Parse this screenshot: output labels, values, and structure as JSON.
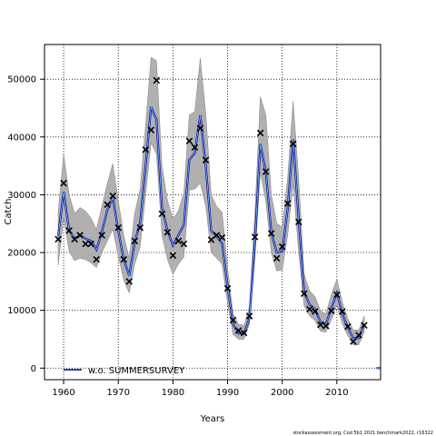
{
  "chart_data": {
    "type": "line",
    "title": "",
    "xlabel": "Years",
    "ylabel": "Catch",
    "xlim": [
      1956.5,
      2018
    ],
    "ylim": [
      -2000,
      56000
    ],
    "xticks": [
      1960,
      1970,
      1980,
      1990,
      2000,
      2010
    ],
    "yticks": [
      0,
      10000,
      20000,
      30000,
      40000,
      50000
    ],
    "grid": true,
    "legend_position": "bottom-left",
    "years": [
      1959,
      1960,
      1961,
      1962,
      1963,
      1964,
      1965,
      1966,
      1967,
      1968,
      1969,
      1970,
      1971,
      1972,
      1973,
      1974,
      1975,
      1976,
      1977,
      1978,
      1979,
      1980,
      1981,
      1982,
      1983,
      1984,
      1985,
      1986,
      1987,
      1988,
      1989,
      1990,
      1991,
      1992,
      1993,
      1994,
      1995,
      1996,
      1997,
      1998,
      1999,
      2000,
      2001,
      2002,
      2003,
      2004,
      2005,
      2006,
      2007,
      2008,
      2009,
      2010,
      2011,
      2012,
      2013,
      2014,
      2015
    ],
    "series": [
      {
        "name": "w.o. SUMMERSURVEY",
        "color": "#00008b",
        "estimate": [
          22800,
          30500,
          23800,
          22400,
          23000,
          22400,
          22000,
          20500,
          23600,
          27400,
          29500,
          23800,
          18800,
          16000,
          21800,
          25200,
          35000,
          45200,
          43000,
          27800,
          23800,
          21200,
          23000,
          24800,
          36000,
          37200,
          43800,
          35000,
          23800,
          22800,
          21600,
          14200,
          7600,
          6000,
          6000,
          8600,
          21800,
          38800,
          33800,
          23500,
          20000,
          20200,
          27600,
          39600,
          25800,
          13200,
          11000,
          10200,
          8000,
          7600,
          10400,
          13000,
          9400,
          7000,
          5200,
          5200,
          7600
        ],
        "lower": [
          17800,
          26000,
          20200,
          18600,
          19000,
          18800,
          18200,
          17400,
          20000,
          22000,
          24000,
          19400,
          15200,
          13000,
          18000,
          21000,
          30000,
          39000,
          37000,
          23000,
          18800,
          16200,
          18000,
          19200,
          30800,
          31000,
          32000,
          28000,
          20000,
          19000,
          18000,
          11200,
          5800,
          5000,
          5000,
          7600,
          18800,
          34000,
          28800,
          20000,
          16800,
          17000,
          23000,
          32000,
          20000,
          10800,
          9000,
          8200,
          6400,
          6200,
          8400,
          10800,
          7600,
          5600,
          4000,
          4000,
          6200
        ],
        "upper": [
          27000,
          37000,
          30000,
          26800,
          27800,
          27200,
          26000,
          24000,
          28000,
          32000,
          35400,
          29000,
          23000,
          19000,
          26800,
          31000,
          42000,
          53800,
          53200,
          35000,
          29000,
          25800,
          27200,
          30400,
          43800,
          44400,
          53600,
          44200,
          30000,
          28000,
          27000,
          17400,
          9400,
          7600,
          7400,
          10600,
          26800,
          47000,
          43800,
          30000,
          25000,
          24400,
          33000,
          46200,
          32800,
          16200,
          13400,
          12400,
          10000,
          9400,
          12800,
          15400,
          11400,
          8600,
          6600,
          6600,
          9000
        ]
      }
    ],
    "observations": [
      {
        "x": 1959,
        "y": 22300
      },
      {
        "x": 1960,
        "y": 32000
      },
      {
        "x": 1961,
        "y": 23800
      },
      {
        "x": 1962,
        "y": 22300
      },
      {
        "x": 1963,
        "y": 23000
      },
      {
        "x": 1964,
        "y": 21500
      },
      {
        "x": 1965,
        "y": 21500
      },
      {
        "x": 1966,
        "y": 18800
      },
      {
        "x": 1967,
        "y": 23000
      },
      {
        "x": 1968,
        "y": 28300
      },
      {
        "x": 1969,
        "y": 29800
      },
      {
        "x": 1970,
        "y": 24300
      },
      {
        "x": 1971,
        "y": 18800
      },
      {
        "x": 1972,
        "y": 15000
      },
      {
        "x": 1973,
        "y": 22000
      },
      {
        "x": 1974,
        "y": 24300
      },
      {
        "x": 1975,
        "y": 37800
      },
      {
        "x": 1976,
        "y": 41200
      },
      {
        "x": 1977,
        "y": 49800
      },
      {
        "x": 1978,
        "y": 26700
      },
      {
        "x": 1979,
        "y": 23500
      },
      {
        "x": 1980,
        "y": 19500
      },
      {
        "x": 1981,
        "y": 22000
      },
      {
        "x": 1982,
        "y": 21500
      },
      {
        "x": 1983,
        "y": 39300
      },
      {
        "x": 1984,
        "y": 38200
      },
      {
        "x": 1985,
        "y": 41500
      },
      {
        "x": 1986,
        "y": 36000
      },
      {
        "x": 1987,
        "y": 22200
      },
      {
        "x": 1988,
        "y": 23000
      },
      {
        "x": 1989,
        "y": 22600
      },
      {
        "x": 1990,
        "y": 13800
      },
      {
        "x": 1991,
        "y": 8300
      },
      {
        "x": 1992,
        "y": 6500
      },
      {
        "x": 1993,
        "y": 6100
      },
      {
        "x": 1994,
        "y": 9000
      },
      {
        "x": 1995,
        "y": 22700
      },
      {
        "x": 1996,
        "y": 40700
      },
      {
        "x": 1997,
        "y": 34000
      },
      {
        "x": 1998,
        "y": 23300
      },
      {
        "x": 1999,
        "y": 19000
      },
      {
        "x": 2000,
        "y": 21000
      },
      {
        "x": 2001,
        "y": 28500
      },
      {
        "x": 2002,
        "y": 38800
      },
      {
        "x": 2003,
        "y": 25300
      },
      {
        "x": 2004,
        "y": 12900
      },
      {
        "x": 2005,
        "y": 10200
      },
      {
        "x": 2006,
        "y": 9800
      },
      {
        "x": 2007,
        "y": 7500
      },
      {
        "x": 2008,
        "y": 7300
      },
      {
        "x": 2009,
        "y": 9900
      },
      {
        "x": 2010,
        "y": 12700
      },
      {
        "x": 2011,
        "y": 9800
      },
      {
        "x": 2012,
        "y": 7200
      },
      {
        "x": 2013,
        "y": 4600
      },
      {
        "x": 2014,
        "y": 5700
      },
      {
        "x": 2015,
        "y": 7400
      }
    ],
    "colors": {
      "band": "#b0b0b0",
      "band_edge": "#808080",
      "estimate": "#00008b",
      "estimate_highlight": "#6fb7ff",
      "observation": "#000000",
      "grid": "#000000"
    },
    "footer": "stockassessment.org, Cod 5b1 2021 benchmark2022, r16322"
  }
}
